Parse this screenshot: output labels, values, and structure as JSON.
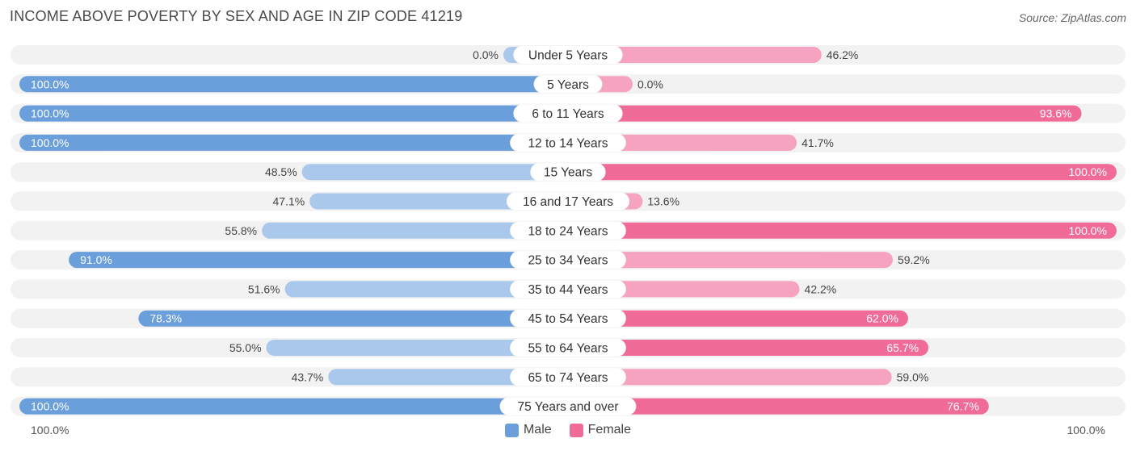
{
  "title": "INCOME ABOVE POVERTY BY SEX AND AGE IN ZIP CODE 41219",
  "source": "Source: ZipAtlas.com",
  "axis": {
    "left_label": "100.0%",
    "right_label": "100.0%"
  },
  "legend": {
    "male": "Male",
    "female": "Female"
  },
  "colors": {
    "male_strong": "#6a9fdb",
    "male_light": "#a9c8ec",
    "female_strong": "#f06b98",
    "female_light": "#f5a3c0",
    "row_bg": "#f2f2f2"
  },
  "chart_data": {
    "type": "bar",
    "orientation": "horizontal-diverging",
    "categories": [
      "Under 5 Years",
      "5 Years",
      "6 to 11 Years",
      "12 to 14 Years",
      "15 Years",
      "16 and 17 Years",
      "18 to 24 Years",
      "25 to 34 Years",
      "35 to 44 Years",
      "45 to 54 Years",
      "55 to 64 Years",
      "65 to 74 Years",
      "75 Years and over"
    ],
    "series": [
      {
        "name": "Male",
        "values": [
          0.0,
          100.0,
          100.0,
          100.0,
          48.5,
          47.1,
          55.8,
          91.0,
          51.6,
          78.3,
          55.0,
          43.7,
          100.0
        ]
      },
      {
        "name": "Female",
        "values": [
          46.2,
          0.0,
          93.6,
          41.7,
          100.0,
          13.6,
          100.0,
          59.2,
          42.2,
          62.0,
          65.7,
          59.0,
          76.7
        ]
      }
    ],
    "value_labels": {
      "male": [
        "0.0%",
        "100.0%",
        "100.0%",
        "100.0%",
        "48.5%",
        "47.1%",
        "55.8%",
        "91.0%",
        "51.6%",
        "78.3%",
        "55.0%",
        "43.7%",
        "100.0%"
      ],
      "female": [
        "46.2%",
        "0.0%",
        "93.6%",
        "41.7%",
        "100.0%",
        "13.6%",
        "100.0%",
        "59.2%",
        "42.2%",
        "62.0%",
        "65.7%",
        "59.0%",
        "76.7%"
      ]
    },
    "xlim": [
      0,
      100
    ],
    "legend_position": "bottom-center"
  }
}
